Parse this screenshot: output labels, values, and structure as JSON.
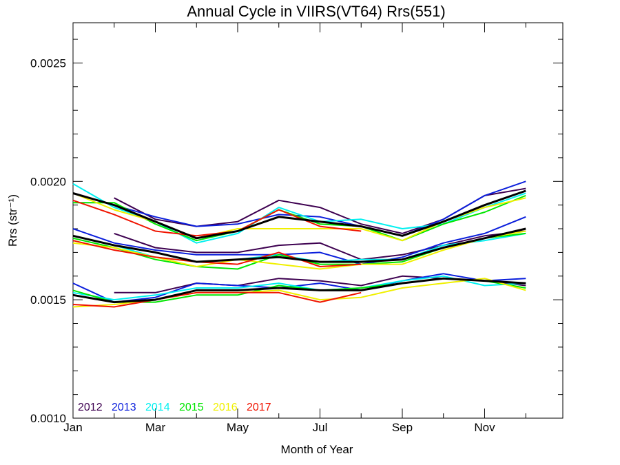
{
  "chart_data": {
    "type": "line",
    "title": "Annual Cycle in VIIRS(VT64) Rrs(551)",
    "xlabel": "Month of Year",
    "ylabel": "Rrs (str⁻¹)",
    "x_ticks": [
      {
        "x": 1,
        "label": "Jan"
      },
      {
        "x": 3,
        "label": "Mar"
      },
      {
        "x": 5,
        "label": "May"
      },
      {
        "x": 7,
        "label": "Jul"
      },
      {
        "x": 9,
        "label": "Sep"
      },
      {
        "x": 11,
        "label": "Nov"
      }
    ],
    "x_minor_ticks": [
      2,
      4,
      6,
      8,
      10,
      12
    ],
    "xlim": [
      1,
      12.9
    ],
    "ylim": [
      0.001,
      0.00267
    ],
    "y_ticks": [
      {
        "y": 0.001,
        "label": "0.0010"
      },
      {
        "y": 0.0015,
        "label": "0.0015"
      },
      {
        "y": 0.002,
        "label": "0.0020"
      },
      {
        "y": 0.0025,
        "label": "0.0025"
      }
    ],
    "y_minor_ticks": [
      0.0011,
      0.0012,
      0.0013,
      0.0014,
      0.0016,
      0.0017,
      0.0018,
      0.0019,
      0.0021,
      0.0022,
      0.0023,
      0.0024,
      0.0026
    ],
    "legend": {
      "placement": "bottom-left",
      "entries": [
        {
          "label": "2012",
          "color": "#3d0050"
        },
        {
          "label": "2013",
          "color": "#0a1edc"
        },
        {
          "label": "2014",
          "color": "#00f0f0"
        },
        {
          "label": "2015",
          "color": "#00e600"
        },
        {
          "label": "2016",
          "color": "#f0f000"
        },
        {
          "label": "2017",
          "color": "#f01400"
        }
      ]
    },
    "series": [
      {
        "group": "upper",
        "name": "2012",
        "color": "#3d0050",
        "points": [
          [
            2,
            0.00193
          ],
          [
            3,
            0.00184
          ],
          [
            4,
            0.00181
          ],
          [
            5,
            0.00183
          ],
          [
            6,
            0.00192
          ],
          [
            7,
            0.00189
          ],
          [
            8,
            0.00182
          ],
          [
            9,
            0.00178
          ],
          [
            10,
            0.00184
          ],
          [
            11,
            0.00194
          ],
          [
            12,
            0.00197
          ]
        ]
      },
      {
        "group": "upper",
        "name": "2013",
        "color": "#0a1edc",
        "points": [
          [
            1,
            0.00195
          ],
          [
            2,
            0.0019
          ],
          [
            3,
            0.00185
          ],
          [
            4,
            0.00181
          ],
          [
            5,
            0.00182
          ],
          [
            6,
            0.00186
          ],
          [
            7,
            0.00185
          ],
          [
            8,
            0.00181
          ],
          [
            9,
            0.00177
          ],
          [
            10,
            0.00184
          ],
          [
            11,
            0.00194
          ],
          [
            12,
            0.002
          ]
        ]
      },
      {
        "group": "upper",
        "name": "2014",
        "color": "#00f0f0",
        "points": [
          [
            1,
            0.00199
          ],
          [
            2,
            0.00189
          ],
          [
            3,
            0.00183
          ],
          [
            4,
            0.00174
          ],
          [
            5,
            0.00178
          ],
          [
            6,
            0.00189
          ],
          [
            7,
            0.00183
          ],
          [
            8,
            0.00184
          ],
          [
            9,
            0.0018
          ],
          [
            10,
            0.00182
          ],
          [
            11,
            0.00189
          ],
          [
            12,
            0.00195
          ]
        ]
      },
      {
        "group": "upper",
        "name": "2015",
        "color": "#00e600",
        "points": [
          [
            1,
            0.00191
          ],
          [
            2,
            0.00191
          ],
          [
            3,
            0.00182
          ],
          [
            4,
            0.00175
          ],
          [
            5,
            0.00179
          ],
          [
            6,
            0.00188
          ],
          [
            7,
            0.00182
          ],
          [
            8,
            0.00181
          ],
          [
            9,
            0.00175
          ],
          [
            10,
            0.00182
          ],
          [
            11,
            0.00187
          ],
          [
            12,
            0.00194
          ]
        ]
      },
      {
        "group": "upper",
        "name": "2016",
        "color": "#f0f000",
        "points": [
          [
            1,
            0.00195
          ],
          [
            2,
            0.00188
          ],
          [
            3,
            0.00183
          ],
          [
            4,
            0.00176
          ],
          [
            5,
            0.0018
          ],
          [
            6,
            0.0018
          ],
          [
            7,
            0.0018
          ],
          [
            8,
            0.0018
          ],
          [
            9,
            0.00175
          ],
          [
            10,
            0.00183
          ],
          [
            11,
            0.00189
          ],
          [
            12,
            0.00193
          ]
        ]
      },
      {
        "group": "upper",
        "name": "2017",
        "color": "#f01400",
        "points": [
          [
            1,
            0.00192
          ],
          [
            2,
            0.00186
          ],
          [
            3,
            0.00179
          ],
          [
            4,
            0.00177
          ],
          [
            5,
            0.00179
          ],
          [
            6,
            0.00188
          ],
          [
            7,
            0.00181
          ],
          [
            8,
            0.00179
          ]
        ]
      },
      {
        "group": "upper",
        "name": "",
        "color": "#000000",
        "mean": true,
        "points": [
          [
            1,
            0.00195
          ],
          [
            2,
            0.0019
          ],
          [
            3,
            0.00183
          ],
          [
            4,
            0.00176
          ],
          [
            5,
            0.00179
          ],
          [
            6,
            0.00185
          ],
          [
            7,
            0.00183
          ],
          [
            8,
            0.00181
          ],
          [
            9,
            0.00177
          ],
          [
            10,
            0.00183
          ],
          [
            11,
            0.0019
          ],
          [
            12,
            0.00196
          ]
        ]
      },
      {
        "group": "middle",
        "name": "2012",
        "color": "#3d0050",
        "points": [
          [
            2,
            0.00178
          ],
          [
            3,
            0.00172
          ],
          [
            4,
            0.0017
          ],
          [
            5,
            0.0017
          ],
          [
            6,
            0.00173
          ],
          [
            7,
            0.00174
          ],
          [
            8,
            0.00167
          ],
          [
            9,
            0.00169
          ],
          [
            10,
            0.00173
          ],
          [
            11,
            0.00177
          ],
          [
            12,
            0.00179
          ]
        ]
      },
      {
        "group": "middle",
        "name": "2013",
        "color": "#0a1edc",
        "points": [
          [
            1,
            0.0018
          ],
          [
            2,
            0.00174
          ],
          [
            3,
            0.00171
          ],
          [
            4,
            0.00169
          ],
          [
            5,
            0.00169
          ],
          [
            6,
            0.00169
          ],
          [
            7,
            0.0017
          ],
          [
            8,
            0.00165
          ],
          [
            9,
            0.00168
          ],
          [
            10,
            0.00174
          ],
          [
            11,
            0.00178
          ],
          [
            12,
            0.00185
          ]
        ]
      },
      {
        "group": "middle",
        "name": "2014",
        "color": "#00f0f0",
        "points": [
          [
            1,
            0.00177
          ],
          [
            2,
            0.00173
          ],
          [
            3,
            0.00168
          ],
          [
            4,
            0.00166
          ],
          [
            5,
            0.00167
          ],
          [
            6,
            0.00169
          ],
          [
            7,
            0.00166
          ],
          [
            8,
            0.00167
          ],
          [
            9,
            0.00167
          ],
          [
            10,
            0.00173
          ],
          [
            11,
            0.00175
          ],
          [
            12,
            0.00178
          ]
        ]
      },
      {
        "group": "middle",
        "name": "2015",
        "color": "#00e600",
        "points": [
          [
            1,
            0.00176
          ],
          [
            2,
            0.00172
          ],
          [
            3,
            0.00167
          ],
          [
            4,
            0.00164
          ],
          [
            5,
            0.00163
          ],
          [
            6,
            0.00169
          ],
          [
            7,
            0.00165
          ],
          [
            8,
            0.00165
          ],
          [
            9,
            0.00166
          ],
          [
            10,
            0.00172
          ],
          [
            11,
            0.00176
          ],
          [
            12,
            0.00178
          ]
        ]
      },
      {
        "group": "middle",
        "name": "2016",
        "color": "#f0f000",
        "points": [
          [
            1,
            0.00174
          ],
          [
            2,
            0.00172
          ],
          [
            3,
            0.00168
          ],
          [
            4,
            0.00164
          ],
          [
            5,
            0.00167
          ],
          [
            6,
            0.00165
          ],
          [
            7,
            0.00163
          ],
          [
            8,
            0.00165
          ],
          [
            9,
            0.00165
          ],
          [
            10,
            0.00171
          ],
          [
            11,
            0.00176
          ],
          [
            12,
            0.00179
          ]
        ]
      },
      {
        "group": "middle",
        "name": "2017",
        "color": "#f01400",
        "points": [
          [
            1,
            0.00175
          ],
          [
            2,
            0.00171
          ],
          [
            3,
            0.00168
          ],
          [
            4,
            0.00166
          ],
          [
            5,
            0.00165
          ],
          [
            6,
            0.0017
          ],
          [
            7,
            0.00164
          ],
          [
            8,
            0.00165
          ]
        ]
      },
      {
        "group": "middle",
        "name": "",
        "color": "#000000",
        "mean": true,
        "points": [
          [
            1,
            0.00177
          ],
          [
            2,
            0.00173
          ],
          [
            3,
            0.0017
          ],
          [
            4,
            0.00166
          ],
          [
            5,
            0.00167
          ],
          [
            6,
            0.00168
          ],
          [
            7,
            0.00166
          ],
          [
            8,
            0.00166
          ],
          [
            9,
            0.00167
          ],
          [
            10,
            0.00172
          ],
          [
            11,
            0.00176
          ],
          [
            12,
            0.0018
          ]
        ]
      },
      {
        "group": "lower",
        "name": "2012",
        "color": "#3d0050",
        "points": [
          [
            2,
            0.00153
          ],
          [
            3,
            0.00153
          ],
          [
            4,
            0.00157
          ],
          [
            5,
            0.00156
          ],
          [
            6,
            0.00159
          ],
          [
            7,
            0.00158
          ],
          [
            8,
            0.00156
          ],
          [
            9,
            0.0016
          ],
          [
            10,
            0.00159
          ],
          [
            11,
            0.00158
          ],
          [
            12,
            0.00156
          ]
        ]
      },
      {
        "group": "lower",
        "name": "2013",
        "color": "#0a1edc",
        "points": [
          [
            1,
            0.00157
          ],
          [
            2,
            0.00149
          ],
          [
            3,
            0.00151
          ],
          [
            4,
            0.00157
          ],
          [
            5,
            0.00156
          ],
          [
            6,
            0.00155
          ],
          [
            7,
            0.00157
          ],
          [
            8,
            0.00154
          ],
          [
            9,
            0.00158
          ],
          [
            10,
            0.00161
          ],
          [
            11,
            0.00158
          ],
          [
            12,
            0.00159
          ]
        ]
      },
      {
        "group": "lower",
        "name": "2014",
        "color": "#00f0f0",
        "points": [
          [
            1,
            0.00153
          ],
          [
            2,
            0.0015
          ],
          [
            3,
            0.00152
          ],
          [
            4,
            0.00155
          ],
          [
            5,
            0.00155
          ],
          [
            6,
            0.00157
          ],
          [
            7,
            0.00154
          ],
          [
            8,
            0.00155
          ],
          [
            9,
            0.00158
          ],
          [
            10,
            0.0016
          ],
          [
            11,
            0.00156
          ],
          [
            12,
            0.00157
          ]
        ]
      },
      {
        "group": "lower",
        "name": "2015",
        "color": "#00e600",
        "points": [
          [
            1,
            0.00154
          ],
          [
            2,
            0.00149
          ],
          [
            3,
            0.00149
          ],
          [
            4,
            0.00152
          ],
          [
            5,
            0.00152
          ],
          [
            6,
            0.00156
          ],
          [
            7,
            0.00154
          ],
          [
            8,
            0.00155
          ],
          [
            9,
            0.00157
          ],
          [
            10,
            0.00159
          ],
          [
            11,
            0.00158
          ],
          [
            12,
            0.00155
          ]
        ]
      },
      {
        "group": "lower",
        "name": "2016",
        "color": "#f0f000",
        "points": [
          [
            1,
            0.00147
          ],
          [
            2,
            0.00148
          ],
          [
            3,
            0.0015
          ],
          [
            4,
            0.00153
          ],
          [
            5,
            0.00153
          ],
          [
            6,
            0.00154
          ],
          [
            7,
            0.0015
          ],
          [
            8,
            0.00151
          ],
          [
            9,
            0.00155
          ],
          [
            10,
            0.00157
          ],
          [
            11,
            0.00159
          ],
          [
            12,
            0.00154
          ]
        ]
      },
      {
        "group": "lower",
        "name": "2017",
        "color": "#f01400",
        "points": [
          [
            1,
            0.00148
          ],
          [
            2,
            0.00147
          ],
          [
            3,
            0.0015
          ],
          [
            4,
            0.00153
          ],
          [
            5,
            0.00153
          ],
          [
            6,
            0.00153
          ],
          [
            7,
            0.00149
          ],
          [
            8,
            0.00153
          ]
        ]
      },
      {
        "group": "lower",
        "name": "",
        "color": "#000000",
        "mean": true,
        "points": [
          [
            1,
            0.00152
          ],
          [
            2,
            0.00149
          ],
          [
            3,
            0.0015
          ],
          [
            4,
            0.00154
          ],
          [
            5,
            0.00154
          ],
          [
            6,
            0.00155
          ],
          [
            7,
            0.00154
          ],
          [
            8,
            0.00154
          ],
          [
            9,
            0.00157
          ],
          [
            10,
            0.00159
          ],
          [
            11,
            0.00158
          ],
          [
            12,
            0.00157
          ]
        ]
      }
    ]
  }
}
